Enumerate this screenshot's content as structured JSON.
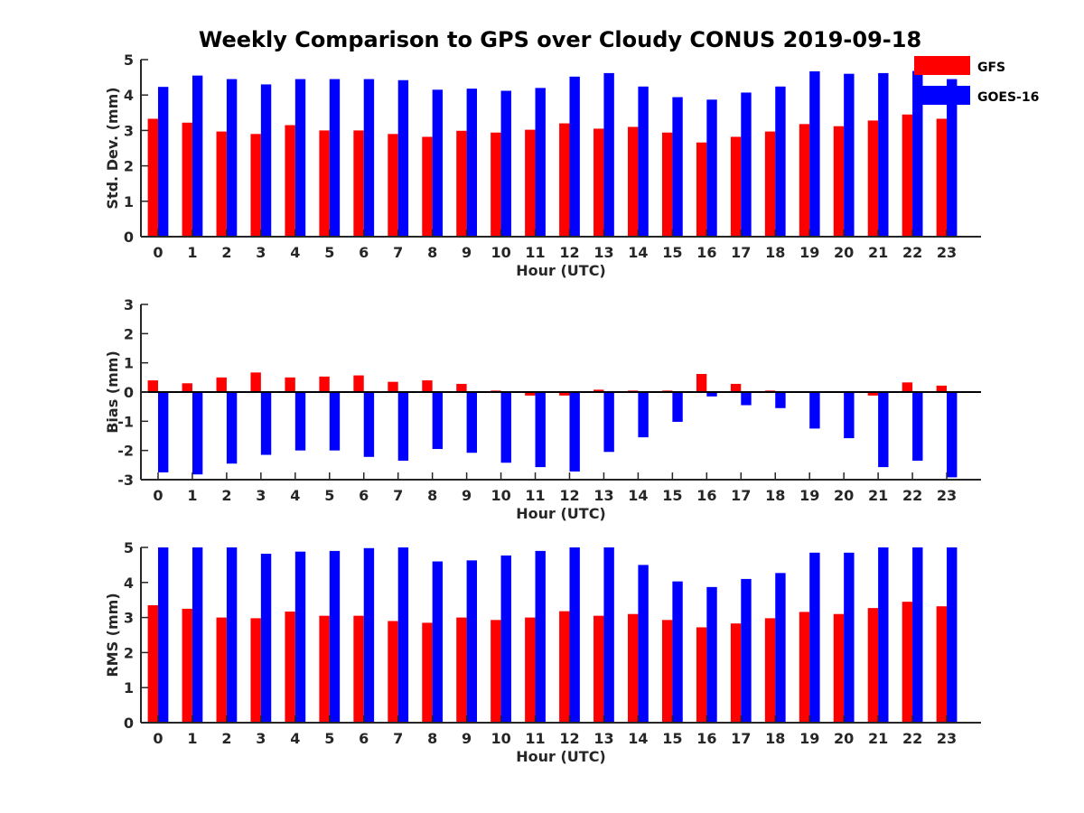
{
  "figure": {
    "title": "Weekly Comparison to GPS over Cloudy CONUS 2019-09-18",
    "legend": [
      {
        "name": "GFS",
        "color": "#ff0000"
      },
      {
        "name": "GOES-16",
        "color": "#0000ff"
      }
    ]
  },
  "chart_data": [
    {
      "type": "bar",
      "title": "Weekly Comparison to GPS over Cloudy CONUS 2019-09-18",
      "xlabel": "Hour (UTC)",
      "ylabel": "Std. Dev. (mm)",
      "ylim": [
        0,
        5
      ],
      "yticks": [
        0,
        1,
        2,
        3,
        4,
        5
      ],
      "legend_position": "top-right",
      "categories": [
        "0",
        "1",
        "2",
        "3",
        "4",
        "5",
        "6",
        "7",
        "8",
        "9",
        "10",
        "11",
        "12",
        "13",
        "14",
        "15",
        "16",
        "17",
        "18",
        "19",
        "20",
        "21",
        "22",
        "23"
      ],
      "series": [
        {
          "name": "GFS",
          "color": "#ff0000",
          "values": [
            3.33,
            3.22,
            2.97,
            2.9,
            3.15,
            3.0,
            3.0,
            2.9,
            2.82,
            2.99,
            2.94,
            3.02,
            3.2,
            3.05,
            3.1,
            2.94,
            2.66,
            2.82,
            2.97,
            3.18,
            3.12,
            3.28,
            3.45,
            3.33
          ]
        },
        {
          "name": "GOES-16",
          "color": "#0000ff",
          "values": [
            4.23,
            4.55,
            4.45,
            4.3,
            4.45,
            4.45,
            4.45,
            4.42,
            4.15,
            4.18,
            4.12,
            4.2,
            4.52,
            4.62,
            4.24,
            3.94,
            3.87,
            4.07,
            4.24,
            4.67,
            4.6,
            4.62,
            4.68,
            4.45
          ]
        }
      ]
    },
    {
      "type": "bar",
      "xlabel": "Hour (UTC)",
      "ylabel": "Bias (mm)",
      "ylim": [
        -3,
        3
      ],
      "yticks": [
        -3,
        -2,
        -1,
        0,
        1,
        2,
        3
      ],
      "categories": [
        "0",
        "1",
        "2",
        "3",
        "4",
        "5",
        "6",
        "7",
        "8",
        "9",
        "10",
        "11",
        "12",
        "13",
        "14",
        "15",
        "16",
        "17",
        "18",
        "19",
        "20",
        "21",
        "22",
        "23"
      ],
      "series": [
        {
          "name": "GFS",
          "color": "#ff0000",
          "values": [
            0.4,
            0.3,
            0.5,
            0.67,
            0.5,
            0.53,
            0.57,
            0.35,
            0.4,
            0.28,
            0.05,
            -0.12,
            -0.12,
            0.08,
            0.05,
            0.05,
            0.62,
            0.28,
            0.05,
            0.0,
            0.03,
            -0.12,
            0.33,
            0.22
          ]
        },
        {
          "name": "GOES-16",
          "color": "#0000ff",
          "values": [
            -2.75,
            -2.82,
            -2.45,
            -2.15,
            -2.0,
            -2.0,
            -2.22,
            -2.35,
            -1.95,
            -2.08,
            -2.42,
            -2.57,
            -2.72,
            -2.05,
            -1.55,
            -1.02,
            -0.15,
            -0.45,
            -0.55,
            -1.25,
            -1.58,
            -2.57,
            -2.35,
            -2.92
          ]
        }
      ]
    },
    {
      "type": "bar",
      "xlabel": "Hour (UTC)",
      "ylabel": "RMS (mm)",
      "ylim": [
        0,
        5
      ],
      "yticks": [
        0,
        1,
        2,
        3,
        4,
        5
      ],
      "categories": [
        "0",
        "1",
        "2",
        "3",
        "4",
        "5",
        "6",
        "7",
        "8",
        "9",
        "10",
        "11",
        "12",
        "13",
        "14",
        "15",
        "16",
        "17",
        "18",
        "19",
        "20",
        "21",
        "22",
        "23"
      ],
      "series": [
        {
          "name": "GFS",
          "color": "#ff0000",
          "values": [
            3.35,
            3.25,
            3.0,
            2.98,
            3.17,
            3.05,
            3.05,
            2.9,
            2.85,
            3.0,
            2.93,
            3.0,
            3.18,
            3.05,
            3.1,
            2.93,
            2.72,
            2.83,
            2.98,
            3.16,
            3.1,
            3.27,
            3.45,
            3.32
          ]
        },
        {
          "name": "GOES-16",
          "color": "#0000ff",
          "values": [
            5.0,
            5.0,
            5.0,
            4.82,
            4.88,
            4.9,
            4.98,
            5.0,
            4.6,
            4.63,
            4.77,
            4.9,
            5.0,
            5.0,
            4.5,
            4.03,
            3.87,
            4.1,
            4.27,
            4.85,
            4.85,
            5.0,
            5.0,
            5.0
          ]
        }
      ]
    }
  ]
}
